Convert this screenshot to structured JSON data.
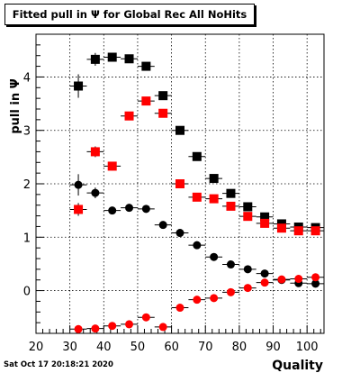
{
  "chart_data": {
    "type": "scatter",
    "title": "Fitted pull in  Ψ  for Global Rec All NoHits",
    "xlabel": "Quality",
    "ylabel": "pull in  Ψ",
    "xlim": [
      20,
      105
    ],
    "ylim": [
      -0.8,
      4.8
    ],
    "x_ticks": [
      20,
      30,
      40,
      50,
      60,
      70,
      80,
      90,
      100
    ],
    "y_ticks": [
      0,
      1,
      2,
      3,
      4
    ],
    "grid": true,
    "legend": "none",
    "series": [
      {
        "marker": "square",
        "color": "#000000",
        "x": [
          32.5,
          37.5,
          42.5,
          47.5,
          52.5,
          57.5,
          62.5,
          67.5,
          72.5,
          77.5,
          82.5,
          87.5,
          92.5,
          97.5,
          102.5
        ],
        "y": [
          3.83,
          4.33,
          4.37,
          4.34,
          4.2,
          3.65,
          3.0,
          2.51,
          2.1,
          1.82,
          1.57,
          1.38,
          1.25,
          1.19,
          1.18
        ],
        "yerr": [
          0.22,
          0.12,
          0.08,
          0.07,
          0.06,
          0.05,
          0.04,
          0.03,
          0.03,
          0.03,
          0.02,
          0.02,
          0.02,
          0.02,
          0.02
        ]
      },
      {
        "marker": "square",
        "color": "#ff0000",
        "x": [
          32.5,
          37.5,
          42.5,
          47.5,
          52.5,
          57.5,
          62.5,
          67.5,
          72.5,
          77.5,
          82.5,
          87.5,
          92.5,
          97.5,
          102.5
        ],
        "y": [
          1.52,
          2.6,
          2.33,
          3.27,
          3.55,
          3.32,
          2.0,
          1.75,
          1.72,
          1.58,
          1.39,
          1.26,
          1.17,
          1.12,
          1.12
        ],
        "yerr": [
          0.12,
          0.1,
          0.08,
          0.07,
          0.06,
          0.05,
          0.04,
          0.03,
          0.03,
          0.03,
          0.02,
          0.02,
          0.02,
          0.02,
          0.02
        ]
      },
      {
        "marker": "circle",
        "color": "#000000",
        "x": [
          32.5,
          37.5,
          42.5,
          47.5,
          52.5,
          57.5,
          62.5,
          67.5,
          72.5,
          77.5,
          82.5,
          87.5,
          92.5,
          97.5,
          102.5
        ],
        "y": [
          1.98,
          1.83,
          1.5,
          1.55,
          1.53,
          1.23,
          1.08,
          0.85,
          0.63,
          0.49,
          0.4,
          0.32,
          0.2,
          0.14,
          0.13
        ],
        "yerr": [
          0.2,
          0.1,
          0.06,
          0.05,
          0.04,
          0.04,
          0.03,
          0.03,
          0.03,
          0.02,
          0.02,
          0.02,
          0.02,
          0.02,
          0.02
        ]
      },
      {
        "marker": "circle",
        "color": "#ff0000",
        "x": [
          32.5,
          37.5,
          42.5,
          47.5,
          52.5,
          57.5,
          62.5,
          67.5,
          72.5,
          77.5,
          82.5,
          87.5,
          92.5,
          97.5,
          102.5
        ],
        "y": [
          -0.72,
          -0.71,
          -0.66,
          -0.63,
          -0.5,
          -0.68,
          -0.32,
          -0.17,
          -0.14,
          -0.03,
          0.05,
          0.15,
          0.21,
          0.22,
          0.25
        ],
        "yerr": [
          0.04,
          0.04,
          0.03,
          0.03,
          0.03,
          0.03,
          0.03,
          0.02,
          0.02,
          0.02,
          0.02,
          0.02,
          0.02,
          0.02,
          0.02
        ]
      }
    ]
  },
  "footer": {
    "timestamp": "Sat Oct 17 20:18:21 2020"
  }
}
